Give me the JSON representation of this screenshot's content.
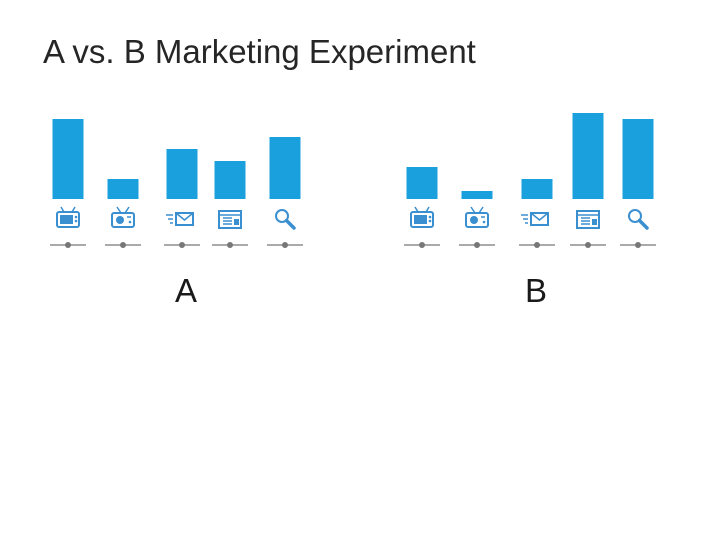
{
  "title": "A vs. B Marketing Experiment",
  "colors": {
    "bar": "#1aa0dc",
    "icon": "#3a8fd0",
    "axis": "#777777"
  },
  "chart_data": [
    {
      "type": "bar",
      "panel_label": "A",
      "categories": [
        "tv-icon",
        "radio-icon",
        "email-icon",
        "web-icon",
        "search-icon"
      ],
      "values": [
        80,
        20,
        50,
        38,
        62
      ],
      "ylim": [
        0,
        90
      ]
    },
    {
      "type": "bar",
      "panel_label": "B",
      "categories": [
        "tv-icon",
        "radio-icon",
        "email-icon",
        "web-icon",
        "search-icon"
      ],
      "values": [
        32,
        8,
        20,
        86,
        80
      ],
      "ylim": [
        0,
        90
      ]
    }
  ]
}
